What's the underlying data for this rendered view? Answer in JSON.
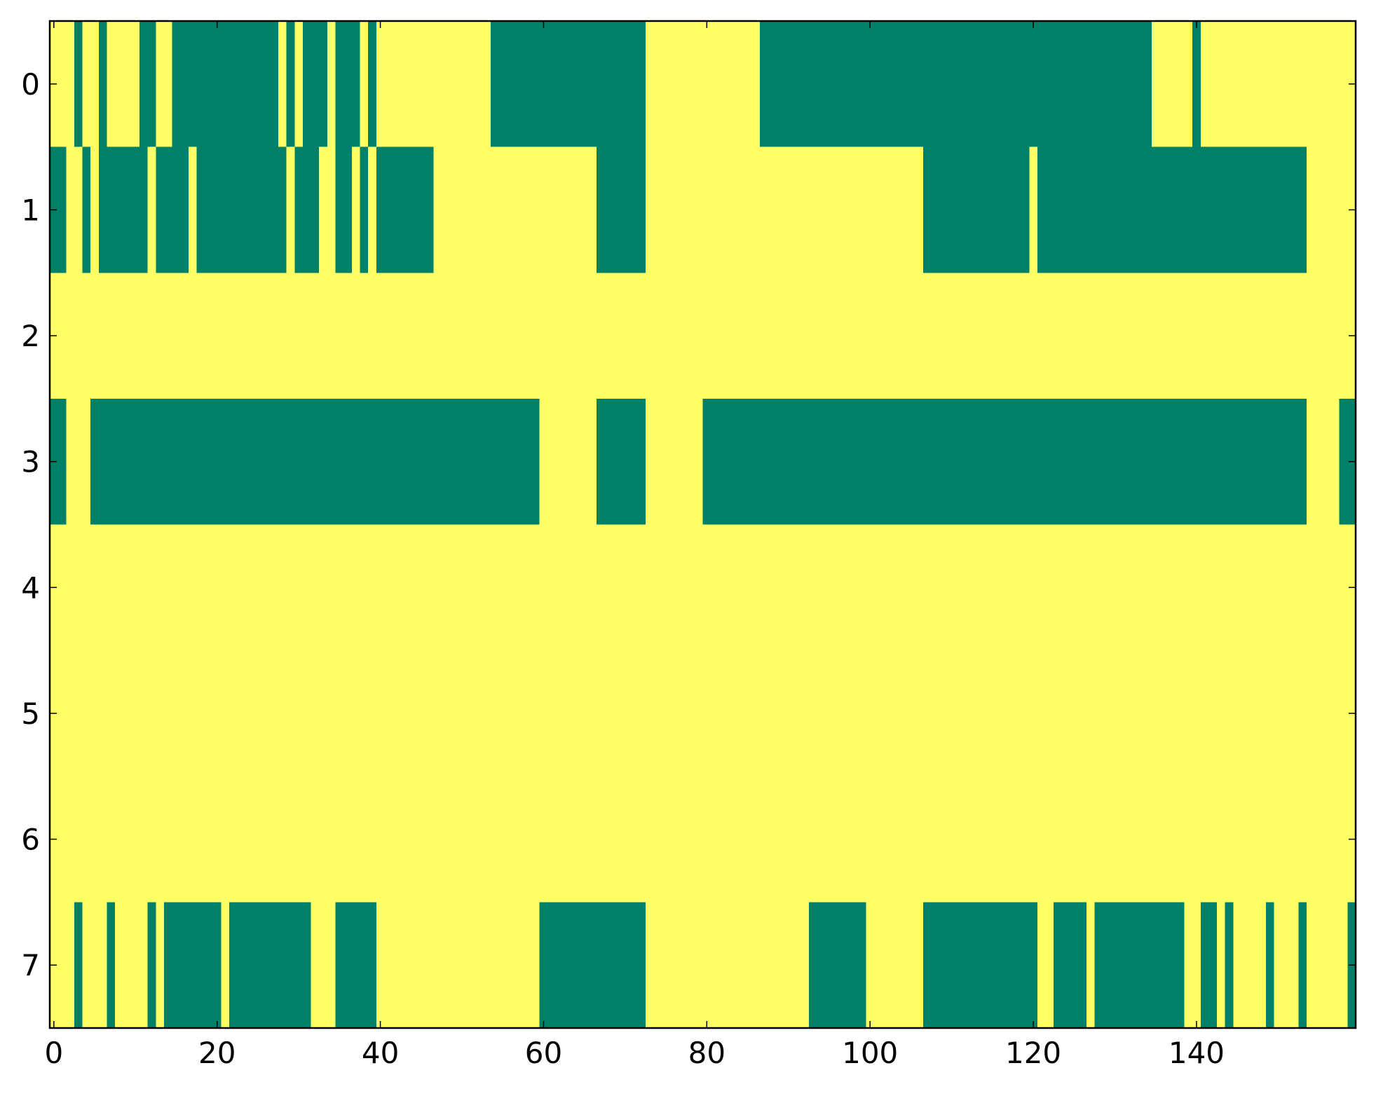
{
  "chart_data": {
    "type": "heatmap",
    "xlim": [
      -0.5,
      159.5
    ],
    "ylim": [
      7.5,
      -0.5
    ],
    "xticks": [
      0,
      20,
      40,
      60,
      80,
      100,
      120,
      140
    ],
    "yticks": [
      0,
      1,
      2,
      3,
      4,
      5,
      6,
      7
    ],
    "zlim": [
      0,
      1
    ],
    "cmap_colors": [
      "#008066",
      "#ffff66"
    ],
    "z": [
      [
        1,
        1,
        1,
        0,
        1,
        1,
        0,
        1,
        1,
        1,
        1,
        0,
        0,
        1,
        1,
        0,
        0,
        0,
        0,
        0,
        0,
        0,
        0,
        0,
        0,
        0,
        0,
        0,
        1,
        0,
        1,
        0,
        0,
        0,
        1,
        0,
        0,
        0,
        1,
        0,
        1,
        1,
        1,
        1,
        1,
        1,
        1,
        1,
        1,
        1,
        1,
        1,
        1,
        1,
        0,
        0,
        0,
        0,
        0,
        0,
        0,
        0,
        0,
        0,
        0,
        0,
        0,
        0,
        0,
        0,
        0,
        0,
        0,
        1,
        1,
        1,
        1,
        1,
        1,
        1,
        1,
        1,
        1,
        1,
        1,
        1,
        1,
        0,
        0,
        0,
        0,
        0,
        0,
        0,
        0,
        0,
        0,
        0,
        0,
        0,
        0,
        0,
        0,
        0,
        0,
        0,
        0,
        0,
        0,
        0,
        0,
        0,
        0,
        0,
        0,
        0,
        0,
        0,
        0,
        0,
        0,
        0,
        0,
        0,
        0,
        0,
        0,
        0,
        0,
        0,
        0,
        0,
        0,
        0,
        0,
        1,
        1,
        1,
        1,
        1,
        0,
        1,
        1,
        1,
        1,
        1,
        1,
        1,
        1,
        1,
        1,
        1,
        1,
        1,
        1,
        1,
        1,
        1,
        1,
        1
      ],
      [
        0,
        0,
        1,
        1,
        0,
        1,
        0,
        0,
        0,
        0,
        0,
        0,
        1,
        0,
        0,
        0,
        0,
        1,
        0,
        0,
        0,
        0,
        0,
        0,
        0,
        0,
        0,
        0,
        0,
        1,
        0,
        0,
        0,
        1,
        1,
        0,
        0,
        1,
        0,
        1,
        0,
        0,
        0,
        0,
        0,
        0,
        0,
        1,
        1,
        1,
        1,
        1,
        1,
        1,
        1,
        1,
        1,
        1,
        1,
        1,
        1,
        1,
        1,
        1,
        1,
        1,
        1,
        0,
        0,
        0,
        0,
        0,
        0,
        1,
        1,
        1,
        1,
        1,
        1,
        1,
        1,
        1,
        1,
        1,
        1,
        1,
        1,
        1,
        1,
        1,
        1,
        1,
        1,
        1,
        1,
        1,
        1,
        1,
        1,
        1,
        1,
        1,
        1,
        1,
        1,
        1,
        1,
        0,
        0,
        0,
        0,
        0,
        0,
        0,
        0,
        0,
        0,
        0,
        0,
        0,
        1,
        0,
        0,
        0,
        0,
        0,
        0,
        0,
        0,
        0,
        0,
        0,
        0,
        0,
        0,
        0,
        0,
        0,
        0,
        0,
        0,
        0,
        0,
        0,
        0,
        0,
        0,
        0,
        0,
        0,
        0,
        0,
        0,
        0,
        1,
        1,
        1,
        1,
        1,
        1
      ],
      [
        1,
        1,
        1,
        1,
        1,
        1,
        1,
        1,
        1,
        1,
        1,
        1,
        1,
        1,
        1,
        1,
        1,
        1,
        1,
        1,
        1,
        1,
        1,
        1,
        1,
        1,
        1,
        1,
        1,
        1,
        1,
        1,
        1,
        1,
        1,
        1,
        1,
        1,
        1,
        1,
        1,
        1,
        1,
        1,
        1,
        1,
        1,
        1,
        1,
        1,
        1,
        1,
        1,
        1,
        1,
        1,
        1,
        1,
        1,
        1,
        1,
        1,
        1,
        1,
        1,
        1,
        1,
        1,
        1,
        1,
        1,
        1,
        1,
        1,
        1,
        1,
        1,
        1,
        1,
        1,
        1,
        1,
        1,
        1,
        1,
        1,
        1,
        1,
        1,
        1,
        1,
        1,
        1,
        1,
        1,
        1,
        1,
        1,
        1,
        1,
        1,
        1,
        1,
        1,
        1,
        1,
        1,
        1,
        1,
        1,
        1,
        1,
        1,
        1,
        1,
        1,
        1,
        1,
        1,
        1,
        1,
        1,
        1,
        1,
        1,
        1,
        1,
        1,
        1,
        1,
        1,
        1,
        1,
        1,
        1,
        1,
        1,
        1,
        1,
        1,
        1,
        1,
        1,
        1,
        1,
        1,
        1,
        1,
        1,
        1,
        1,
        1,
        1,
        1,
        1,
        1,
        1,
        1,
        1,
        1
      ],
      [
        0,
        0,
        1,
        1,
        1,
        0,
        0,
        0,
        0,
        0,
        0,
        0,
        0,
        0,
        0,
        0,
        0,
        0,
        0,
        0,
        0,
        0,
        0,
        0,
        0,
        0,
        0,
        0,
        0,
        0,
        0,
        0,
        0,
        0,
        0,
        0,
        0,
        0,
        0,
        0,
        0,
        0,
        0,
        0,
        0,
        0,
        0,
        0,
        0,
        0,
        0,
        0,
        0,
        0,
        0,
        0,
        0,
        0,
        0,
        0,
        1,
        1,
        1,
        1,
        1,
        1,
        1,
        0,
        0,
        0,
        0,
        0,
        0,
        1,
        1,
        1,
        1,
        1,
        1,
        1,
        0,
        0,
        0,
        0,
        0,
        0,
        0,
        0,
        0,
        0,
        0,
        0,
        0,
        0,
        0,
        0,
        0,
        0,
        0,
        0,
        0,
        0,
        0,
        0,
        0,
        0,
        0,
        0,
        0,
        0,
        0,
        0,
        0,
        0,
        0,
        0,
        0,
        0,
        0,
        0,
        0,
        0,
        0,
        0,
        0,
        0,
        0,
        0,
        0,
        0,
        0,
        0,
        0,
        0,
        0,
        0,
        0,
        0,
        0,
        0,
        0,
        0,
        0,
        0,
        0,
        0,
        0,
        0,
        0,
        0,
        0,
        0,
        0,
        0,
        1,
        1,
        1,
        1,
        0,
        0
      ],
      [
        1,
        1,
        1,
        1,
        1,
        1,
        1,
        1,
        1,
        1,
        1,
        1,
        1,
        1,
        1,
        1,
        1,
        1,
        1,
        1,
        1,
        1,
        1,
        1,
        1,
        1,
        1,
        1,
        1,
        1,
        1,
        1,
        1,
        1,
        1,
        1,
        1,
        1,
        1,
        1,
        1,
        1,
        1,
        1,
        1,
        1,
        1,
        1,
        1,
        1,
        1,
        1,
        1,
        1,
        1,
        1,
        1,
        1,
        1,
        1,
        1,
        1,
        1,
        1,
        1,
        1,
        1,
        1,
        1,
        1,
        1,
        1,
        1,
        1,
        1,
        1,
        1,
        1,
        1,
        1,
        1,
        1,
        1,
        1,
        1,
        1,
        1,
        1,
        1,
        1,
        1,
        1,
        1,
        1,
        1,
        1,
        1,
        1,
        1,
        1,
        1,
        1,
        1,
        1,
        1,
        1,
        1,
        1,
        1,
        1,
        1,
        1,
        1,
        1,
        1,
        1,
        1,
        1,
        1,
        1,
        1,
        1,
        1,
        1,
        1,
        1,
        1,
        1,
        1,
        1,
        1,
        1,
        1,
        1,
        1,
        1,
        1,
        1,
        1,
        1,
        1,
        1,
        1,
        1,
        1,
        1,
        1,
        1,
        1,
        1,
        1,
        1,
        1,
        1,
        1,
        1,
        1,
        1,
        1,
        1
      ],
      [
        1,
        1,
        1,
        1,
        1,
        1,
        1,
        1,
        1,
        1,
        1,
        1,
        1,
        1,
        1,
        1,
        1,
        1,
        1,
        1,
        1,
        1,
        1,
        1,
        1,
        1,
        1,
        1,
        1,
        1,
        1,
        1,
        1,
        1,
        1,
        1,
        1,
        1,
        1,
        1,
        1,
        1,
        1,
        1,
        1,
        1,
        1,
        1,
        1,
        1,
        1,
        1,
        1,
        1,
        1,
        1,
        1,
        1,
        1,
        1,
        1,
        1,
        1,
        1,
        1,
        1,
        1,
        1,
        1,
        1,
        1,
        1,
        1,
        1,
        1,
        1,
        1,
        1,
        1,
        1,
        1,
        1,
        1,
        1,
        1,
        1,
        1,
        1,
        1,
        1,
        1,
        1,
        1,
        1,
        1,
        1,
        1,
        1,
        1,
        1,
        1,
        1,
        1,
        1,
        1,
        1,
        1,
        1,
        1,
        1,
        1,
        1,
        1,
        1,
        1,
        1,
        1,
        1,
        1,
        1,
        1,
        1,
        1,
        1,
        1,
        1,
        1,
        1,
        1,
        1,
        1,
        1,
        1,
        1,
        1,
        1,
        1,
        1,
        1,
        1,
        1,
        1,
        1,
        1,
        1,
        1,
        1,
        1,
        1,
        1,
        1,
        1,
        1,
        1,
        1,
        1,
        1,
        1,
        1,
        1
      ],
      [
        1,
        1,
        1,
        1,
        1,
        1,
        1,
        1,
        1,
        1,
        1,
        1,
        1,
        1,
        1,
        1,
        1,
        1,
        1,
        1,
        1,
        1,
        1,
        1,
        1,
        1,
        1,
        1,
        1,
        1,
        1,
        1,
        1,
        1,
        1,
        1,
        1,
        1,
        1,
        1,
        1,
        1,
        1,
        1,
        1,
        1,
        1,
        1,
        1,
        1,
        1,
        1,
        1,
        1,
        1,
        1,
        1,
        1,
        1,
        1,
        1,
        1,
        1,
        1,
        1,
        1,
        1,
        1,
        1,
        1,
        1,
        1,
        1,
        1,
        1,
        1,
        1,
        1,
        1,
        1,
        1,
        1,
        1,
        1,
        1,
        1,
        1,
        1,
        1,
        1,
        1,
        1,
        1,
        1,
        1,
        1,
        1,
        1,
        1,
        1,
        1,
        1,
        1,
        1,
        1,
        1,
        1,
        1,
        1,
        1,
        1,
        1,
        1,
        1,
        1,
        1,
        1,
        1,
        1,
        1,
        1,
        1,
        1,
        1,
        1,
        1,
        1,
        1,
        1,
        1,
        1,
        1,
        1,
        1,
        1,
        1,
        1,
        1,
        1,
        1,
        1,
        1,
        1,
        1,
        1,
        1,
        1,
        1,
        1,
        1,
        1,
        1,
        1,
        1,
        1,
        1,
        1,
        1,
        1,
        1
      ],
      [
        1,
        1,
        1,
        0,
        1,
        1,
        1,
        0,
        1,
        1,
        1,
        1,
        0,
        1,
        0,
        0,
        0,
        0,
        0,
        0,
        0,
        1,
        0,
        0,
        0,
        0,
        0,
        0,
        0,
        0,
        0,
        0,
        1,
        1,
        1,
        0,
        0,
        0,
        0,
        0,
        1,
        1,
        1,
        1,
        1,
        1,
        1,
        1,
        1,
        1,
        1,
        1,
        1,
        1,
        1,
        1,
        1,
        1,
        1,
        1,
        0,
        0,
        0,
        0,
        0,
        0,
        0,
        0,
        0,
        0,
        0,
        0,
        0,
        1,
        1,
        1,
        1,
        1,
        1,
        1,
        1,
        1,
        1,
        1,
        1,
        1,
        1,
        1,
        1,
        1,
        1,
        1,
        1,
        0,
        0,
        0,
        0,
        0,
        0,
        0,
        1,
        1,
        1,
        1,
        1,
        1,
        1,
        0,
        0,
        0,
        0,
        0,
        0,
        0,
        0,
        0,
        0,
        0,
        0,
        0,
        0,
        1,
        1,
        0,
        0,
        0,
        0,
        1,
        0,
        0,
        0,
        0,
        0,
        0,
        0,
        0,
        0,
        0,
        0,
        1,
        1,
        0,
        0,
        1,
        0,
        1,
        1,
        1,
        1,
        0,
        1,
        1,
        1,
        0,
        1,
        1,
        1,
        1,
        1,
        0
      ]
    ]
  }
}
